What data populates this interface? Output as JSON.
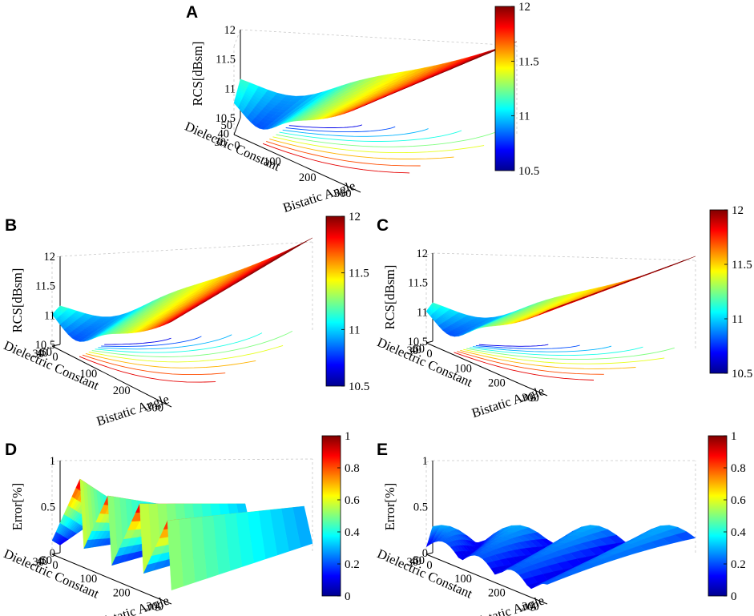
{
  "figure": {
    "colormap": [
      "#00008f",
      "#0000ff",
      "#0080ff",
      "#00ffff",
      "#80ff80",
      "#ffff00",
      "#ff8000",
      "#ff0000",
      "#800000"
    ]
  },
  "chart_data": [
    {
      "id": "A",
      "type": "surface",
      "label": "A",
      "zlabel": "RCS[dBsm]",
      "xlabel": "Bistatic Angle",
      "ylabel": "Dielectric Constant",
      "xticks": [
        "0",
        "100",
        "200",
        "300"
      ],
      "yticks": [
        "30",
        "40",
        "50"
      ],
      "zticks": [
        "10.5",
        "11",
        "11.5",
        "12"
      ],
      "colorbar_ticks": [
        "10.5",
        "11",
        "11.5",
        "12"
      ],
      "xrange": [
        0,
        360
      ],
      "yrange": [
        30,
        50
      ],
      "zrange": [
        10.5,
        12
      ],
      "clim": [
        10.5,
        12
      ],
      "surface": "rcs_bowl",
      "contours": 9
    },
    {
      "id": "B",
      "type": "surface",
      "label": "B",
      "zlabel": "RCS[dBsm]",
      "xlabel": "Bistatic Angle",
      "ylabel": "Dielectric Constant",
      "xticks": [
        "0",
        "100",
        "200",
        "300"
      ],
      "yticks": [
        "30",
        "40",
        "50"
      ],
      "zticks": [
        "10.5",
        "11",
        "11.5",
        "12"
      ],
      "colorbar_ticks": [
        "10.5",
        "11",
        "11.5",
        "12"
      ],
      "xrange": [
        0,
        360
      ],
      "yrange": [
        30,
        50
      ],
      "zrange": [
        10.5,
        12
      ],
      "clim": [
        10.5,
        12
      ],
      "surface": "rcs_bowl",
      "contours": 9
    },
    {
      "id": "C",
      "type": "surface",
      "label": "C",
      "zlabel": "RCS[dBsm]",
      "xlabel": "Bistatic Angle",
      "ylabel": "Dielectric Constant",
      "xticks": [
        "0",
        "100",
        "200",
        "300"
      ],
      "yticks": [
        "30",
        "40",
        "50"
      ],
      "zticks": [
        "10.5",
        "11",
        "11.5",
        "12"
      ],
      "colorbar_ticks": [
        "10.5",
        "11",
        "11.5",
        "12"
      ],
      "xrange": [
        0,
        360
      ],
      "yrange": [
        30,
        50
      ],
      "zrange": [
        10.5,
        12
      ],
      "clim": [
        10.5,
        12
      ],
      "surface": "rcs_bowl",
      "contours": 9
    },
    {
      "id": "D",
      "type": "surface",
      "label": "D",
      "zlabel": "Error[%]",
      "xlabel": "Bistatic Angle",
      "ylabel": "Dielectric Constant",
      "xticks": [
        "0",
        "100",
        "200",
        "300"
      ],
      "yticks": [
        "30",
        "40",
        "50"
      ],
      "zticks": [
        "0",
        "0.5",
        "1"
      ],
      "colorbar_ticks": [
        "0",
        "0.2",
        "0.4",
        "0.6",
        "0.8",
        "1"
      ],
      "xrange": [
        0,
        360
      ],
      "yrange": [
        30,
        50
      ],
      "zrange": [
        0,
        1
      ],
      "clim": [
        0,
        1
      ],
      "surface": "error_high",
      "contours": 0
    },
    {
      "id": "E",
      "type": "surface",
      "label": "E",
      "zlabel": "Error[%]",
      "xlabel": "Bistatic Angle",
      "ylabel": "Dielectric Constant",
      "xticks": [
        "0",
        "100",
        "200",
        "300"
      ],
      "yticks": [
        "30",
        "40",
        "50"
      ],
      "zticks": [
        "0",
        "0.5",
        "1"
      ],
      "colorbar_ticks": [
        "0",
        "0.2",
        "0.4",
        "0.6",
        "0.8",
        "1"
      ],
      "xrange": [
        0,
        360
      ],
      "yrange": [
        30,
        50
      ],
      "zrange": [
        0,
        1
      ],
      "clim": [
        0,
        1
      ],
      "surface": "error_low",
      "contours": 0
    }
  ]
}
